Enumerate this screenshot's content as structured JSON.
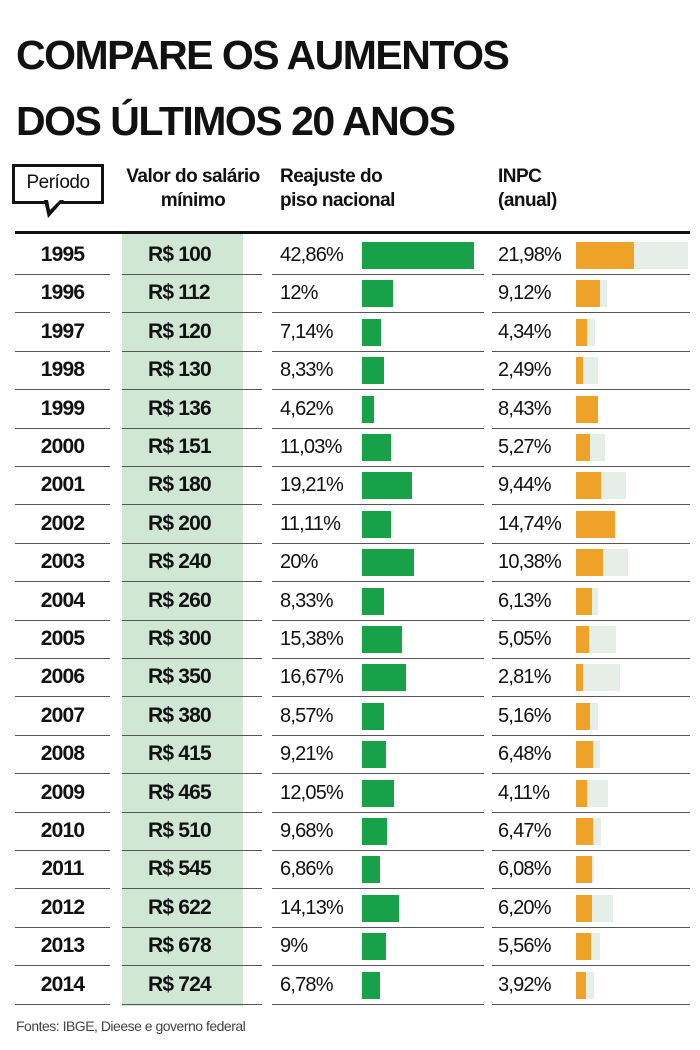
{
  "chart_data": {
    "type": "bar-table",
    "title": "COMPARE OS AUMENTOS DOS ÚLTIMOS 20 ANOS",
    "category_header": "Período",
    "categories": [
      "1995",
      "1996",
      "1997",
      "1998",
      "1999",
      "2000",
      "2001",
      "2002",
      "2003",
      "2004",
      "2005",
      "2006",
      "2007",
      "2008",
      "2009",
      "2010",
      "2011",
      "2012",
      "2013",
      "2014"
    ],
    "series": [
      {
        "name": "Valor do salário mínimo",
        "values": [
          "R$ 100",
          "R$ 112",
          "R$ 120",
          "R$ 130",
          "R$ 136",
          "R$ 151",
          "R$ 180",
          "R$ 200",
          "R$ 240",
          "R$ 260",
          "R$ 300",
          "R$ 350",
          "R$ 380",
          "R$ 415",
          "R$ 465",
          "R$ 510",
          "R$ 545",
          "R$ 622",
          "R$ 678",
          "R$ 724"
        ]
      },
      {
        "name": "Reajuste do piso nacional",
        "color": "#17a24a",
        "values": [
          42.86,
          12,
          7.14,
          8.33,
          4.62,
          11.03,
          19.21,
          11.11,
          20,
          8.33,
          15.38,
          16.67,
          8.57,
          9.21,
          12.05,
          9.68,
          6.86,
          14.13,
          9,
          6.78
        ],
        "value_labels": [
          "42,86%",
          "12%",
          "7,14%",
          "8,33%",
          "4,62%",
          "11,03%",
          "19,21%",
          "11,11%",
          "20%",
          "8,33%",
          "15,38%",
          "16,67%",
          "8,57%",
          "9,21%",
          "12,05%",
          "9,68%",
          "6,86%",
          "14,13%",
          "9%",
          "6,78%"
        ]
      },
      {
        "name": "INPC (anual)",
        "color": "#eea227",
        "values": [
          21.98,
          9.12,
          4.34,
          2.49,
          8.43,
          5.27,
          9.44,
          14.74,
          10.38,
          6.13,
          5.05,
          2.81,
          5.16,
          6.48,
          4.11,
          6.47,
          6.08,
          6.2,
          5.56,
          3.92
        ],
        "value_labels": [
          "21,98%",
          "9,12%",
          "4,34%",
          "2,49%",
          "8,43%",
          "5,27%",
          "9,44%",
          "14,74%",
          "10,38%",
          "6,13%",
          "5,05%",
          "2,81%",
          "5,16%",
          "6,48%",
          "4,11%",
          "6,47%",
          "6,08%",
          "6,20%",
          "5,56%",
          "3,92%"
        ]
      }
    ],
    "source": "Fontes: IBGE, Dieese e governo federal"
  }
}
